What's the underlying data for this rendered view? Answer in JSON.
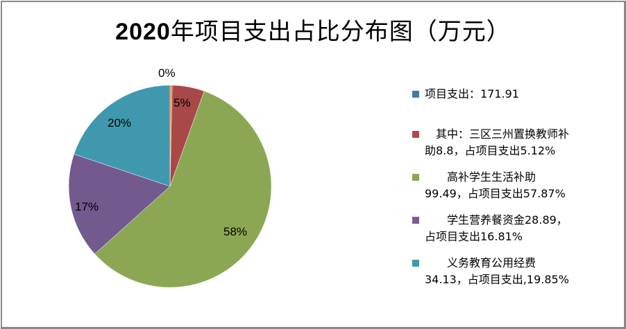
{
  "chart_data": {
    "type": "pie",
    "title": "2020年项目支出占比分布图（万元）",
    "title_year": "2020",
    "title_rest": "年项目支出占比分布图（万元）",
    "start_angle_deg": 0,
    "direction": "clockwise",
    "slices": [
      {
        "name": "项目支出：171.91",
        "value": 0,
        "percent_label": "0%",
        "color": "#E8843A"
      },
      {
        "name": "其中：三区三州置换教师补助8.8，占项目支出5.12%",
        "value": 8.8,
        "percent": 5.12,
        "percent_label": "5%",
        "color": "#A84848"
      },
      {
        "name": "高补学生生活补助99.49，占项目支出57.87%",
        "value": 99.49,
        "percent": 57.87,
        "percent_label": "58%",
        "color": "#8BA753"
      },
      {
        "name": "学生营养餐资金28.89，占项目支出16.81%",
        "value": 28.89,
        "percent": 16.81,
        "percent_label": "17%",
        "color": "#72598E"
      },
      {
        "name": "义务教育公用经费34.13，占项目支出,19.85%",
        "value": 34.13,
        "percent": 19.85,
        "percent_label": "20%",
        "color": "#4098AE"
      }
    ],
    "legend_position": "right"
  },
  "legend": {
    "items": [
      {
        "color": "#4A76AE",
        "line1": "项目支出：171.91",
        "line2": ""
      },
      {
        "color": "#B04A48",
        "line1": "　其中：三区三州置换教师补",
        "line2": "助8.8，占项目支出5.12%"
      },
      {
        "color": "#8BA753",
        "line1": "　　高补学生生活补助",
        "line2": "99.49，占项目支出57.87%"
      },
      {
        "color": "#7A5C96",
        "line1": "　　学生营养餐资金28.89，",
        "line2": "占项目支出16.81%"
      },
      {
        "color": "#4098AE",
        "line1": "　　义务教育公用经费",
        "line2": "34.13，占项目支出,19.85%"
      }
    ]
  },
  "labels": {
    "zero": "0%",
    "red": "5%",
    "green": "58%",
    "purple": "17%",
    "teal": "20%"
  }
}
